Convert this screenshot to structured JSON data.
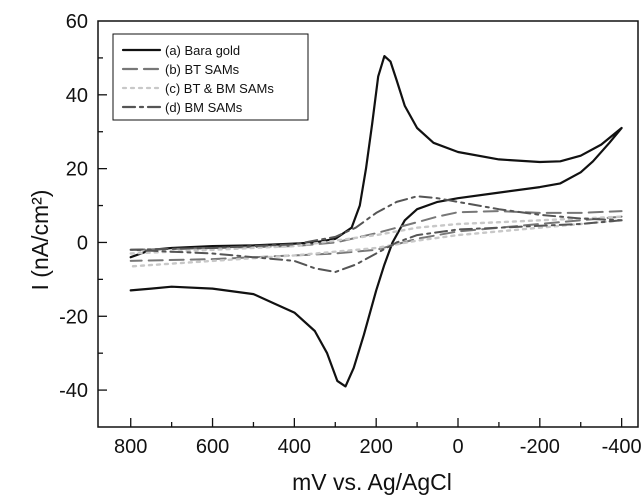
{
  "chart_data": {
    "type": "line",
    "xlabel": "mV vs. Ag/AgCl",
    "ylabel": "I (nA/cm²)",
    "xlim": [
      880,
      -440
    ],
    "ylim": [
      -50,
      60
    ],
    "x_ticks": [
      800,
      600,
      400,
      200,
      0,
      -200,
      -400
    ],
    "y_ticks": [
      -40,
      -20,
      0,
      20,
      40,
      60
    ],
    "grid": false,
    "legend_position": "top-left",
    "series": [
      {
        "name": "(a) Bara gold",
        "color": "#111111",
        "dash": "solid",
        "forward": [
          [
            800,
            -4
          ],
          [
            750,
            -2
          ],
          [
            700,
            -1.5
          ],
          [
            600,
            -1
          ],
          [
            500,
            -0.8
          ],
          [
            400,
            -0.3
          ],
          [
            350,
            0
          ],
          [
            300,
            1
          ],
          [
            260,
            4
          ],
          [
            240,
            10
          ],
          [
            225,
            20
          ],
          [
            210,
            32
          ],
          [
            195,
            45
          ],
          [
            180,
            50.5
          ],
          [
            165,
            49
          ],
          [
            150,
            44
          ],
          [
            130,
            37
          ],
          [
            100,
            31
          ],
          [
            60,
            27
          ],
          [
            0,
            24.5
          ],
          [
            -100,
            22.5
          ],
          [
            -200,
            21.8
          ],
          [
            -250,
            22
          ],
          [
            -300,
            23.5
          ],
          [
            -350,
            26.5
          ],
          [
            -400,
            31
          ]
        ],
        "reverse": [
          [
            -400,
            31
          ],
          [
            -370,
            27
          ],
          [
            -330,
            22
          ],
          [
            -300,
            19
          ],
          [
            -250,
            16
          ],
          [
            -200,
            15
          ],
          [
            -100,
            13.5
          ],
          [
            0,
            12
          ],
          [
            50,
            11
          ],
          [
            100,
            9
          ],
          [
            130,
            6
          ],
          [
            160,
            0
          ],
          [
            180,
            -6
          ],
          [
            200,
            -13
          ],
          [
            230,
            -25
          ],
          [
            255,
            -34
          ],
          [
            275,
            -39
          ],
          [
            295,
            -37.5
          ],
          [
            320,
            -30
          ],
          [
            350,
            -24
          ],
          [
            400,
            -19
          ],
          [
            450,
            -16.5
          ],
          [
            500,
            -14
          ],
          [
            600,
            -12.5
          ],
          [
            700,
            -12
          ],
          [
            750,
            -12.5
          ],
          [
            800,
            -13
          ]
        ]
      },
      {
        "name": "(b) BT SAMs",
        "color": "#777777",
        "dash": "dashed",
        "forward": [
          [
            800,
            -2
          ],
          [
            600,
            -1.5
          ],
          [
            400,
            -1
          ],
          [
            300,
            0
          ],
          [
            200,
            2.5
          ],
          [
            100,
            5.5
          ],
          [
            50,
            7
          ],
          [
            0,
            8.2
          ],
          [
            -100,
            8.5
          ],
          [
            -200,
            8
          ],
          [
            -300,
            8
          ],
          [
            -400,
            8.5
          ]
        ],
        "reverse": [
          [
            -400,
            7
          ],
          [
            -300,
            6
          ],
          [
            -200,
            5
          ],
          [
            -100,
            4
          ],
          [
            0,
            3
          ],
          [
            100,
            1
          ],
          [
            200,
            -2
          ],
          [
            300,
            -3
          ],
          [
            400,
            -3.5
          ],
          [
            600,
            -4.5
          ],
          [
            800,
            -5
          ]
        ]
      },
      {
        "name": "(c) BT & BM SAMs",
        "color": "#c8c8c8",
        "dash": "dotted",
        "forward": [
          [
            800,
            -3
          ],
          [
            600,
            -2
          ],
          [
            400,
            -1
          ],
          [
            300,
            0.5
          ],
          [
            200,
            2
          ],
          [
            100,
            4
          ],
          [
            0,
            5
          ],
          [
            -100,
            5.5
          ],
          [
            -200,
            6
          ],
          [
            -300,
            6.5
          ],
          [
            -400,
            7
          ]
        ],
        "reverse": [
          [
            -400,
            6
          ],
          [
            -300,
            5
          ],
          [
            -200,
            4
          ],
          [
            -100,
            3
          ],
          [
            0,
            2
          ],
          [
            100,
            0.5
          ],
          [
            200,
            -1.5
          ],
          [
            300,
            -2.5
          ],
          [
            400,
            -3.5
          ],
          [
            600,
            -5
          ],
          [
            800,
            -6.5
          ]
        ]
      },
      {
        "name": "(d) BM SAMs",
        "color": "#555555",
        "dash": "dashdot",
        "forward": [
          [
            800,
            -2
          ],
          [
            600,
            -1.5
          ],
          [
            400,
            -0.5
          ],
          [
            300,
            1.5
          ],
          [
            250,
            4
          ],
          [
            200,
            8
          ],
          [
            150,
            11
          ],
          [
            100,
            12.5
          ],
          [
            50,
            12
          ],
          [
            0,
            11
          ],
          [
            -100,
            9
          ],
          [
            -200,
            7.5
          ],
          [
            -300,
            6.5
          ],
          [
            -400,
            6
          ]
        ],
        "reverse": [
          [
            -400,
            6
          ],
          [
            -300,
            5
          ],
          [
            -200,
            4.5
          ],
          [
            -100,
            4
          ],
          [
            0,
            3.5
          ],
          [
            100,
            2
          ],
          [
            150,
            0
          ],
          [
            200,
            -3
          ],
          [
            250,
            -6
          ],
          [
            300,
            -8
          ],
          [
            350,
            -7
          ],
          [
            400,
            -5
          ],
          [
            500,
            -4
          ],
          [
            600,
            -3
          ],
          [
            700,
            -2.5
          ],
          [
            800,
            -2
          ]
        ]
      }
    ]
  }
}
